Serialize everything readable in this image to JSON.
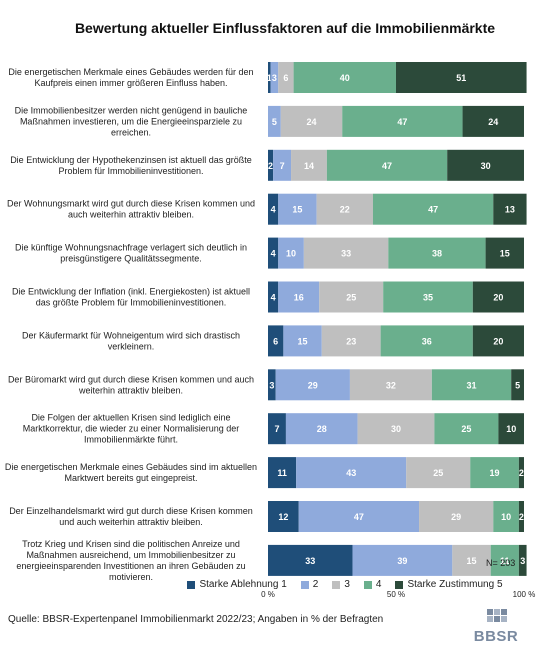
{
  "chart_data": {
    "type": "bar",
    "orientation": "horizontal-stacked-100",
    "title": "Bewertung aktueller Einflussfaktoren auf die Immobilienmärkte",
    "categories": [
      "Die energetischen Merkmale eines Gebäudes werden für den Kaufpreis einen immer größeren Einfluss haben.",
      "Die Immobilienbesitzer werden  nicht genügend in bauliche Maßnahmen investieren, um die Energieeinsparziele zu erreichen.",
      "Die Entwicklung der Hypothekenzinsen ist aktuell das größte Problem für Immobilieninvestitionen.",
      "Der Wohnungsmarkt wird gut durch diese Krisen kommen und auch weiterhin attraktiv bleiben.",
      "Die künftige Wohnungsnachfrage verlagert sich deutlich in preisgünstigere Qualitätssegmente.",
      "Die Entwicklung der Inflation (inkl. Energiekosten) ist aktuell das größte Problem für Immobilieninvestitionen.",
      "Der Käufermarkt für Wohneigentum wird sich drastisch verkleinern.",
      "Der Büromarkt wird gut durch diese Krisen kommen und auch weiterhin attraktiv bleiben.",
      "Die Folgen der aktuellen Krisen sind lediglich eine Marktkorrektur, die wieder zu einer Normalisierung der Immobilienmärkte führt.",
      "Die energetischen Merkmale eines Gebäudes sind im aktuellen Marktwert bereits gut eingepreist.",
      "Der Einzelhandelsmarkt wird gut durch diese Krisen kommen und auch weiterhin attraktiv bleiben.",
      "Trotz Krieg und Krisen sind die politischen Anreize und Maßnahmen ausreichend, um Immobilienbesitzer zu energieeinsparenden Investitionen an ihren Gebäuden zu motivieren."
    ],
    "series": [
      {
        "name": "Starke Ablehnung 1",
        "color": "#1f4e79",
        "values": [
          1,
          0,
          2,
          4,
          4,
          4,
          6,
          3,
          7,
          11,
          12,
          33
        ]
      },
      {
        "name": "2",
        "color": "#8faadc",
        "values": [
          3,
          5,
          7,
          15,
          10,
          16,
          15,
          29,
          28,
          43,
          47,
          39
        ]
      },
      {
        "name": "3",
        "color": "#bfbfbf",
        "values": [
          6,
          24,
          14,
          22,
          33,
          25,
          23,
          32,
          30,
          25,
          29,
          15
        ]
      },
      {
        "name": "4",
        "color": "#6aaf8d",
        "values": [
          40,
          47,
          47,
          47,
          38,
          35,
          36,
          31,
          25,
          19,
          10,
          11
        ]
      },
      {
        "name": "Starke Zustimmung 5",
        "color": "#2c4a3a",
        "values": [
          51,
          24,
          30,
          13,
          15,
          20,
          20,
          5,
          10,
          2,
          2,
          3
        ]
      }
    ],
    "xticks": [
      "0 %",
      "50 %",
      "100 %"
    ],
    "xlim": [
      0,
      100
    ],
    "legend_position": "bottom",
    "grid": false
  },
  "n_note": "N= 203",
  "source": "Quelle: BBSR-Expertenpanel Immobilienmarkt 2022/23;  Angaben in % der Befragten",
  "logo_text": "BBSR"
}
